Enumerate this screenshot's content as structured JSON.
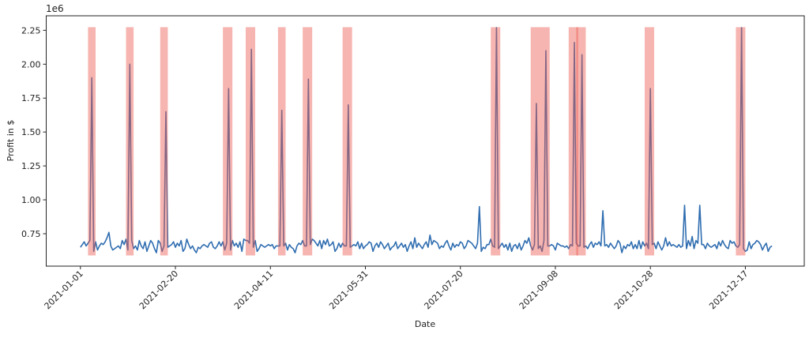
{
  "chart_data": {
    "type": "line",
    "title": "",
    "xlabel": "Date",
    "ylabel": "Profit in $",
    "y_offset_label": "1e6",
    "ylim": [
      0.511,
      2.357
    ],
    "yticks": [
      0.75,
      1.0,
      1.25,
      1.5,
      1.75,
      2.0,
      2.25
    ],
    "ytick_labels": [
      "0.75",
      "1.00",
      "1.25",
      "1.50",
      "1.75",
      "2.00",
      "2.25"
    ],
    "xlim": [
      "2020-12-14",
      "2022-01-17"
    ],
    "xticks": [
      "2021-01-01",
      "2021-02-20",
      "2021-04-11",
      "2021-05-31",
      "2021-07-20",
      "2021-09-08",
      "2021-10-28",
      "2021-12-17"
    ],
    "grid": false,
    "legend": "none",
    "colors": {
      "line": "#2f6db0",
      "highlight": "#ec5a50"
    },
    "series": [
      {
        "x_start": "2021-01-01",
        "x_step": "1 day",
        "values": [
          0.65,
          0.67,
          0.69,
          0.66,
          0.68,
          0.7,
          1.9,
          0.62,
          0.69,
          0.63,
          0.66,
          0.68,
          0.67,
          0.69,
          0.72,
          0.76,
          0.66,
          0.63,
          0.64,
          0.65,
          0.66,
          0.64,
          0.7,
          0.67,
          0.71,
          0.63,
          2.0,
          0.7,
          0.64,
          0.66,
          0.63,
          0.7,
          0.66,
          0.64,
          0.69,
          0.62,
          0.66,
          0.7,
          0.68,
          0.64,
          0.61,
          0.7,
          0.68,
          0.62,
          0.66,
          1.65,
          0.65,
          0.66,
          0.67,
          0.69,
          0.65,
          0.68,
          0.66,
          0.7,
          0.62,
          0.64,
          0.71,
          0.67,
          0.64,
          0.66,
          0.63,
          0.61,
          0.65,
          0.64,
          0.66,
          0.67,
          0.66,
          0.65,
          0.68,
          0.69,
          0.65,
          0.64,
          0.66,
          0.69,
          0.66,
          0.69,
          0.63,
          0.68,
          1.82,
          0.63,
          0.7,
          0.66,
          0.68,
          0.65,
          0.69,
          0.62,
          0.71,
          0.7,
          0.7,
          0.68,
          2.11,
          0.65,
          0.7,
          0.62,
          0.64,
          0.67,
          0.66,
          0.65,
          0.66,
          0.67,
          0.66,
          0.67,
          0.64,
          0.66,
          0.66,
          0.66,
          1.66,
          0.66,
          0.68,
          0.63,
          0.67,
          0.65,
          0.64,
          0.61,
          0.66,
          0.68,
          0.67,
          0.7,
          0.66,
          0.66,
          1.89,
          0.67,
          0.71,
          0.7,
          0.68,
          0.66,
          0.7,
          0.64,
          0.7,
          0.67,
          0.71,
          0.66,
          0.67,
          0.69,
          0.62,
          0.64,
          0.68,
          0.65,
          0.68,
          0.66,
          0.66,
          1.7,
          0.65,
          0.66,
          0.67,
          0.66,
          0.69,
          0.64,
          0.68,
          0.64,
          0.66,
          0.67,
          0.69,
          0.68,
          0.62,
          0.66,
          0.68,
          0.65,
          0.69,
          0.67,
          0.64,
          0.66,
          0.68,
          0.63,
          0.65,
          0.66,
          0.69,
          0.64,
          0.66,
          0.68,
          0.65,
          0.67,
          0.62,
          0.66,
          0.69,
          0.64,
          0.72,
          0.65,
          0.68,
          0.66,
          0.64,
          0.67,
          0.69,
          0.65,
          0.74,
          0.67,
          0.7,
          0.69,
          0.68,
          0.64,
          0.66,
          0.65,
          0.68,
          0.7,
          0.66,
          0.63,
          0.68,
          0.65,
          0.67,
          0.66,
          0.69,
          0.68,
          0.64,
          0.66,
          0.7,
          0.69,
          0.68,
          0.66,
          0.64,
          0.68,
          0.95,
          0.62,
          0.65,
          0.64,
          0.67,
          0.67,
          0.71,
          0.66,
          0.65,
          2.27,
          0.64,
          0.66,
          0.68,
          0.65,
          0.67,
          0.63,
          0.68,
          0.62,
          0.66,
          0.67,
          0.64,
          0.68,
          0.63,
          0.66,
          0.7,
          0.68,
          0.72,
          0.66,
          0.63,
          0.67,
          1.71,
          0.64,
          0.66,
          0.62,
          0.7,
          2.1,
          0.66,
          0.66,
          0.67,
          0.66,
          0.63,
          0.68,
          0.67,
          0.66,
          0.66,
          0.65,
          0.66,
          0.64,
          0.67,
          0.66,
          2.16,
          0.68,
          0.66,
          0.66,
          2.07,
          0.65,
          0.66,
          0.64,
          0.67,
          0.69,
          0.65,
          0.68,
          0.67,
          0.69,
          0.66,
          0.92,
          0.66,
          0.67,
          0.65,
          0.68,
          0.66,
          0.64,
          0.66,
          0.7,
          0.68,
          0.61,
          0.66,
          0.64,
          0.67,
          0.66,
          0.69,
          0.64,
          0.67,
          0.64,
          0.7,
          0.64,
          0.69,
          0.66,
          0.68,
          0.64,
          1.82,
          0.67,
          0.68,
          0.64,
          0.69,
          0.66,
          0.63,
          0.66,
          0.72,
          0.66,
          0.69,
          0.66,
          0.67,
          0.66,
          0.65,
          0.67,
          0.65,
          0.66,
          0.96,
          0.64,
          0.7,
          0.66,
          0.73,
          0.64,
          0.7,
          0.68,
          0.96,
          0.67,
          0.67,
          0.64,
          0.68,
          0.66,
          0.65,
          0.66,
          0.67,
          0.64,
          0.69,
          0.66,
          0.7,
          0.67,
          0.65,
          0.64,
          0.7,
          0.68,
          0.69,
          0.66,
          0.65,
          0.67,
          2.27,
          0.64,
          0.62,
          0.63,
          0.69,
          0.64,
          0.67,
          0.68,
          0.7,
          0.69,
          0.67,
          0.63,
          0.66,
          0.68,
          0.62,
          0.65,
          0.66
        ]
      }
    ],
    "highlight_spans": {
      "y_range": [
        0.59,
        2.273
      ],
      "spans": [
        [
          "2021-01-05",
          "2021-01-09"
        ],
        [
          "2021-01-25",
          "2021-01-29"
        ],
        [
          "2021-02-12",
          "2021-02-16"
        ],
        [
          "2021-03-17",
          "2021-03-22"
        ],
        [
          "2021-03-29",
          "2021-04-03"
        ],
        [
          "2021-04-15",
          "2021-04-19"
        ],
        [
          "2021-04-28",
          "2021-05-03"
        ],
        [
          "2021-05-19",
          "2021-05-24"
        ],
        [
          "2021-08-05",
          "2021-08-10"
        ],
        [
          "2021-08-26",
          "2021-09-05"
        ],
        [
          "2021-09-15",
          "2021-09-20"
        ],
        [
          "2021-09-19",
          "2021-09-24"
        ],
        [
          "2021-10-25",
          "2021-10-30"
        ],
        [
          "2021-12-12",
          "2021-12-17"
        ]
      ]
    }
  }
}
